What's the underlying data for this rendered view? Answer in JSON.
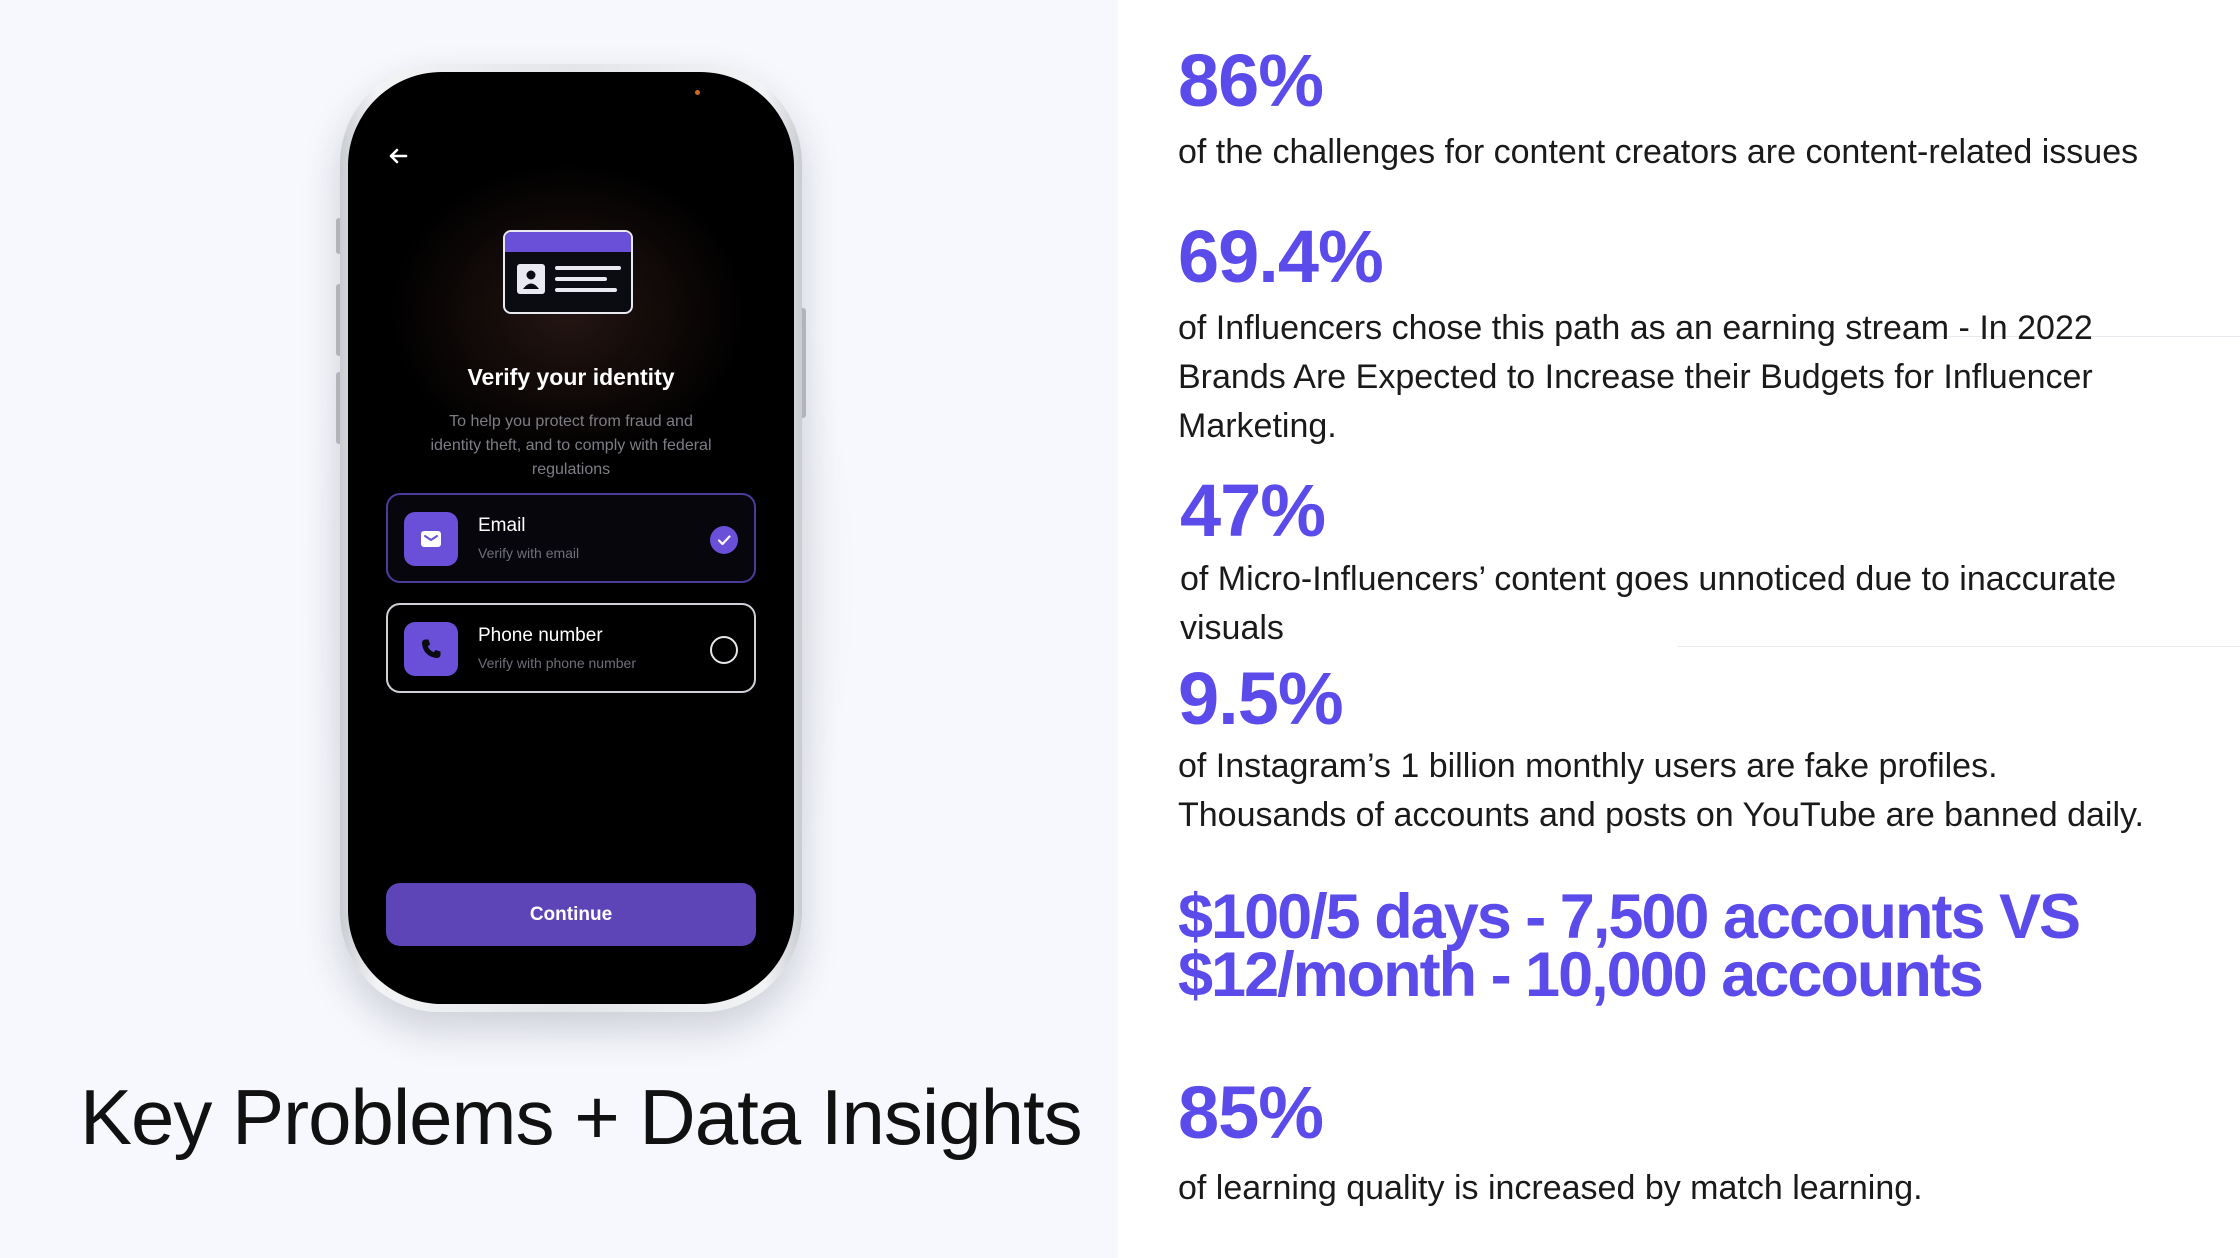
{
  "phone": {
    "screen": {
      "title": "Verify your identity",
      "subtitle_lines": [
        "To help you protect from fraud and",
        "identity theft, and to comply with federal",
        "regulations"
      ],
      "options": [
        {
          "label": "Email",
          "sub": "Verify with email",
          "selected": true
        },
        {
          "label": "Phone number",
          "sub": "Verify with phone number",
          "selected": false
        }
      ],
      "continue_label": "Continue"
    }
  },
  "page_title": "Key Problems + Data Insights",
  "stats": [
    {
      "value": "86%",
      "lines": [
        "of the challenges for content creators are content-related issues"
      ]
    },
    {
      "value": "69.4%",
      "lines": [
        "of Influencers chose this path as an earning stream - In 2022",
        "Brands Are Expected to Increase their Budgets for Influencer",
        "Marketing."
      ]
    },
    {
      "value": "47%",
      "lines": [
        "of Micro-Influencers’ content goes unnoticed due to inaccurate",
        "visuals"
      ]
    },
    {
      "value": "9.5%",
      "lines": [
        "of Instagram’s 1 billion monthly users are fake profiles.",
        "Thousands of accounts and posts on YouTube are banned daily."
      ]
    },
    {
      "value": "85%",
      "lines": [
        "of learning quality is increased by match learning."
      ]
    }
  ],
  "comparison": {
    "line1": "$100/5 days - 7,500 accounts VS",
    "line2": "$12/month - 10,000 accounts"
  },
  "colors": {
    "accent": "#5b4bea",
    "button": "#5d45b7",
    "icon_bg": "#6a4fd8"
  }
}
